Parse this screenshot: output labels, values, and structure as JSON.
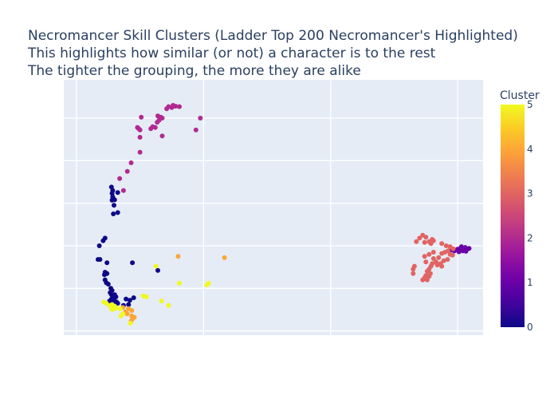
{
  "chart_data": {
    "type": "scatter",
    "title_lines": [
      "Necromancer Skill Clusters (Ladder Top 200 Necromancer's Highlighted)",
      "This highlights how similar (or not) a character is to the rest",
      "The tighter the grouping, the more they are alike"
    ],
    "xlabel": "",
    "ylabel": "",
    "xlim": [
      -0.2,
      6.4
    ],
    "ylim": [
      0,
      6
    ],
    "x_gridlines": [
      0,
      2,
      4,
      6
    ],
    "y_gridlines": [
      0.1,
      1.1,
      2.1,
      3.1,
      4.1,
      5.1
    ],
    "grid": true,
    "colorbar": {
      "title": "Cluster",
      "min": 0,
      "max": 5,
      "ticks": [
        "0",
        "1",
        "2",
        "3",
        "4",
        "5"
      ],
      "colorscale": [
        "#0d0887",
        "#46039f",
        "#7201a8",
        "#9c179e",
        "#bd3786",
        "#d8576b",
        "#ed7953",
        "#fb9f3a",
        "#fdca26",
        "#f0f921"
      ]
    },
    "series": [
      {
        "cluster": 0,
        "color": "#0d0887",
        "points": [
          [
            0.55,
            3.48
          ],
          [
            0.57,
            3.4
          ],
          [
            0.56,
            3.33
          ],
          [
            0.57,
            3.25
          ],
          [
            0.58,
            3.2
          ],
          [
            0.56,
            3.17
          ],
          [
            0.6,
            3.18
          ],
          [
            0.59,
            3.05
          ],
          [
            0.58,
            2.85
          ],
          [
            0.65,
            2.88
          ],
          [
            0.65,
            3.35
          ],
          [
            0.45,
            2.28
          ],
          [
            0.42,
            2.22
          ],
          [
            0.36,
            2.1
          ],
          [
            0.34,
            1.78
          ],
          [
            0.37,
            1.78
          ],
          [
            0.48,
            1.7
          ],
          [
            0.45,
            1.48
          ],
          [
            0.48,
            1.45
          ],
          [
            0.44,
            1.42
          ],
          [
            0.45,
            1.3
          ],
          [
            0.47,
            1.23
          ],
          [
            0.5,
            1.2
          ],
          [
            0.54,
            1.1
          ],
          [
            0.56,
            1.05
          ],
          [
            0.53,
            1.0
          ],
          [
            0.55,
            0.95
          ],
          [
            0.57,
            0.92
          ],
          [
            0.6,
            0.95
          ],
          [
            0.62,
            0.9
          ],
          [
            0.58,
            0.88
          ],
          [
            0.55,
            0.85
          ],
          [
            0.6,
            0.8
          ],
          [
            0.63,
            0.78
          ],
          [
            0.52,
            0.8
          ],
          [
            0.57,
            0.76
          ],
          [
            0.65,
            0.75
          ],
          [
            0.78,
            0.85
          ],
          [
            0.84,
            0.82
          ],
          [
            0.9,
            0.88
          ],
          [
            0.82,
            0.72
          ],
          [
            0.74,
            0.7
          ],
          [
            0.88,
            1.7
          ],
          [
            1.28,
            1.52
          ]
        ]
      },
      {
        "cluster": 1,
        "color": "#6a00a8",
        "points": [
          [
            6.0,
            2.02
          ],
          [
            6.05,
            2.05
          ],
          [
            6.1,
            2.03
          ],
          [
            6.08,
            1.98
          ],
          [
            6.12,
            2.06
          ],
          [
            6.15,
            2.02
          ],
          [
            6.02,
            1.96
          ],
          [
            5.95,
            1.98
          ],
          [
            5.9,
            2.0
          ],
          [
            6.06,
            2.08
          ],
          [
            6.13,
            1.97
          ],
          [
            6.18,
            2.04
          ]
        ]
      },
      {
        "cluster": 2,
        "color": "#b12a90",
        "points": [
          [
            1.42,
            5.32
          ],
          [
            1.45,
            5.37
          ],
          [
            1.5,
            5.35
          ],
          [
            1.52,
            5.4
          ],
          [
            1.56,
            5.38
          ],
          [
            1.62,
            5.37
          ],
          [
            1.28,
            5.15
          ],
          [
            1.33,
            5.12
          ],
          [
            1.35,
            5.1
          ],
          [
            1.27,
            5.0
          ],
          [
            1.3,
            5.05
          ],
          [
            1.2,
            4.9
          ],
          [
            1.24,
            4.88
          ],
          [
            1.17,
            4.85
          ],
          [
            1.02,
            5.12
          ],
          [
            0.98,
            4.85
          ],
          [
            1.0,
            4.82
          ],
          [
            0.96,
            4.88
          ],
          [
            1.88,
            4.82
          ],
          [
            1.95,
            5.1
          ],
          [
            1.0,
            4.65
          ],
          [
            1.35,
            4.68
          ],
          [
            1.0,
            4.3
          ],
          [
            0.86,
            4.05
          ],
          [
            0.8,
            3.85
          ],
          [
            0.68,
            3.68
          ],
          [
            0.74,
            3.4
          ]
        ]
      },
      {
        "cluster": 3,
        "color": "#e16462",
        "points": [
          [
            5.45,
            2.35
          ],
          [
            5.5,
            2.3
          ],
          [
            5.4,
            2.28
          ],
          [
            5.6,
            2.25
          ],
          [
            5.55,
            2.2
          ],
          [
            5.48,
            2.18
          ],
          [
            5.35,
            2.2
          ],
          [
            5.62,
            2.22
          ],
          [
            5.58,
            2.15
          ],
          [
            5.75,
            2.15
          ],
          [
            5.82,
            2.1
          ],
          [
            5.88,
            2.08
          ],
          [
            5.93,
            2.03
          ],
          [
            5.85,
            1.98
          ],
          [
            5.8,
            1.95
          ],
          [
            5.88,
            1.9
          ],
          [
            5.75,
            1.92
          ],
          [
            5.92,
            1.88
          ],
          [
            5.62,
            1.95
          ],
          [
            5.55,
            1.9
          ],
          [
            5.48,
            1.85
          ],
          [
            5.62,
            1.8
          ],
          [
            5.7,
            1.82
          ],
          [
            5.78,
            1.75
          ],
          [
            5.84,
            1.78
          ],
          [
            5.66,
            1.72
          ],
          [
            5.73,
            1.68
          ],
          [
            5.68,
            1.65
          ],
          [
            5.75,
            1.62
          ],
          [
            5.5,
            1.72
          ],
          [
            5.6,
            1.68
          ],
          [
            5.58,
            1.62
          ],
          [
            5.55,
            1.55
          ],
          [
            5.52,
            1.5
          ],
          [
            5.57,
            1.45
          ],
          [
            5.5,
            1.4
          ],
          [
            5.55,
            1.38
          ],
          [
            5.48,
            1.35
          ],
          [
            5.45,
            1.3
          ],
          [
            5.52,
            1.3
          ],
          [
            5.3,
            1.55
          ],
          [
            5.32,
            1.62
          ],
          [
            5.3,
            1.45
          ]
        ]
      },
      {
        "cluster": 4,
        "color": "#fca636",
        "points": [
          [
            0.73,
            0.65
          ],
          [
            0.77,
            0.55
          ],
          [
            0.82,
            0.62
          ],
          [
            0.87,
            0.58
          ],
          [
            0.8,
            0.5
          ],
          [
            0.87,
            0.45
          ],
          [
            0.91,
            0.42
          ],
          [
            0.88,
            0.38
          ],
          [
            0.86,
            0.33
          ],
          [
            1.6,
            1.85
          ],
          [
            2.33,
            1.82
          ]
        ]
      },
      {
        "cluster": 5,
        "color": "#f0f921",
        "points": [
          [
            0.43,
            0.78
          ],
          [
            0.47,
            0.75
          ],
          [
            0.52,
            0.7
          ],
          [
            0.56,
            0.72
          ],
          [
            0.6,
            0.68
          ],
          [
            0.55,
            0.62
          ],
          [
            0.57,
            0.6
          ],
          [
            0.63,
            0.64
          ],
          [
            0.69,
            0.62
          ],
          [
            0.73,
            0.5
          ],
          [
            0.7,
            0.45
          ],
          [
            0.85,
            0.28
          ],
          [
            1.05,
            0.92
          ],
          [
            1.1,
            0.9
          ],
          [
            1.34,
            0.8
          ],
          [
            1.45,
            0.7
          ],
          [
            1.62,
            1.22
          ],
          [
            2.05,
            1.18
          ],
          [
            2.08,
            1.22
          ],
          [
            1.25,
            1.62
          ]
        ]
      }
    ]
  }
}
